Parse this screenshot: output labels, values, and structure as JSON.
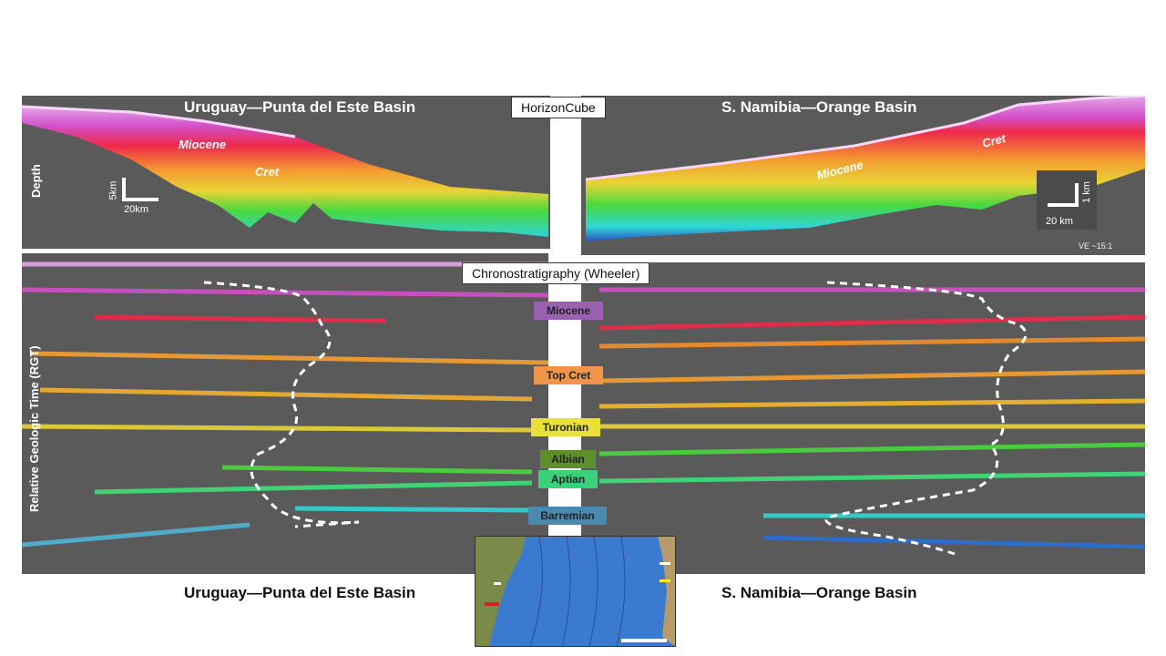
{
  "top_left": {
    "title": "Uruguay—Punta  del Este Basin",
    "depth_label": "Depth",
    "miocene": "Miocene",
    "cret": "Cret",
    "scale_v": "5km",
    "scale_h": "20km"
  },
  "top_right": {
    "title": "S. Namibia—Orange  Basin",
    "miocene": "Miocene",
    "cret": "Cret",
    "scale_v": "1 km",
    "scale_h": "20 km",
    "ve": "VE ~15:1"
  },
  "horizoncube": "HorizonCube",
  "wheeler": "Chronostratigraphy  (Wheeler)",
  "rgt_label": "Relative Geologic Time (RGT)",
  "eras": [
    {
      "label": "Miocene",
      "color": "#9b5fb4"
    },
    {
      "label": "Top Cret",
      "color": "#f0944a"
    },
    {
      "label": "Turonian",
      "color": "#e9e13a"
    },
    {
      "label": "Albian",
      "color": "#5d8f2c"
    },
    {
      "label": "Aptian",
      "color": "#39d27a"
    },
    {
      "label": "Barremian",
      "color": "#4a89b0"
    }
  ],
  "bottom_left_title": "Uruguay—Punta  del Este Basin",
  "bottom_right_title": "S. Namibia—Orange  Basin"
}
